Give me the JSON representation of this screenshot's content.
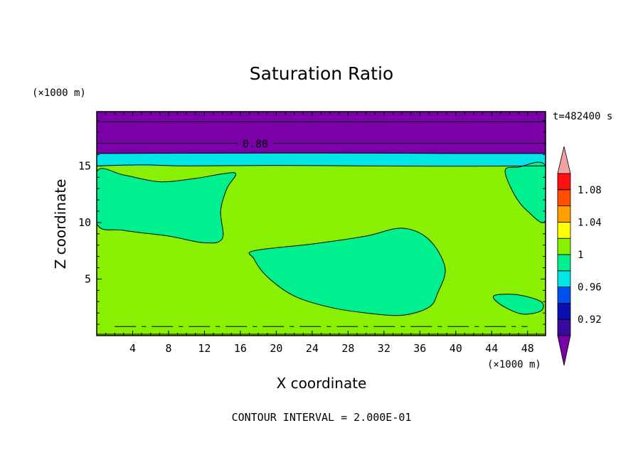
{
  "chart_data": {
    "type": "heatmap",
    "title": "Saturation Ratio",
    "xlabel": "X coordinate",
    "ylabel": "Z coordinate",
    "x_unit": "(×1000 m)",
    "y_unit": "(×1000 m)",
    "xlim": [
      0,
      50
    ],
    "ylim": [
      0,
      19.8
    ],
    "x_ticks": [
      4,
      8,
      12,
      16,
      20,
      24,
      28,
      32,
      36,
      40,
      44,
      48
    ],
    "y_ticks": [
      5,
      10,
      15
    ],
    "time_label": "t=482400 s",
    "contour_label": "0.80",
    "footer": "CONTOUR INTERVAL = 2.000E-01",
    "colorbar": {
      "labels": [
        "0.92",
        "0.96",
        "1",
        "1.04",
        "1.08"
      ],
      "label_values": [
        0.92,
        0.96,
        1.0,
        1.04,
        1.08
      ],
      "min": 0.9,
      "max": 1.1,
      "band_step": 0.02,
      "colors": [
        "#3a0aa0",
        "#0a10b0",
        "#0050f0",
        "#00e6e6",
        "#00f090",
        "#88f000",
        "#ffff00",
        "#ffa000",
        "#ff5000",
        "#ff1010"
      ],
      "under_color": "#7a00a8",
      "over_color": "#f5a0a0"
    },
    "field": {
      "background_color": "#88f000",
      "moist_color": "#00f090",
      "transition_color": "#00e6e6",
      "dry_color": "#7a00a8",
      "line_color": "#000000",
      "dry_layer_z": [
        16.1,
        19.8
      ],
      "transition_layer_z": [
        15.0,
        16.1
      ],
      "contour_lines_z": [
        17.0,
        18.9
      ],
      "regions": [
        {
          "name": "upper-left-moist",
          "points": [
            [
              0,
              14.5
            ],
            [
              3,
              14.2
            ],
            [
              7,
              13.6
            ],
            [
              11,
              13.9
            ],
            [
              14,
              14.3
            ],
            [
              15.5,
              14.3
            ],
            [
              14.5,
              13
            ],
            [
              13.8,
              11
            ],
            [
              14,
              8.6
            ],
            [
              12,
              8.2
            ],
            [
              8,
              8.8
            ],
            [
              3,
              9.3
            ],
            [
              0,
              9.9
            ]
          ]
        },
        {
          "name": "central-moist",
          "points": [
            [
              17.5,
              7.5
            ],
            [
              24,
              8.1
            ],
            [
              30,
              8.8
            ],
            [
              34,
              9.5
            ],
            [
              37,
              8.5
            ],
            [
              38.8,
              6
            ],
            [
              38,
              3.8
            ],
            [
              37,
              2.5
            ],
            [
              34,
              1.8
            ],
            [
              30,
              2
            ],
            [
              26,
              2.5
            ],
            [
              22,
              3.5
            ],
            [
              19,
              5.2
            ],
            [
              17.5,
              6.8
            ]
          ]
        },
        {
          "name": "upper-right-moist",
          "points": [
            [
              50,
              15.0
            ],
            [
              47,
              14.9
            ],
            [
              45.5,
              14.6
            ],
            [
              46.5,
              12.5
            ],
            [
              48,
              11
            ],
            [
              50,
              10.2
            ]
          ]
        },
        {
          "name": "lower-right-moist",
          "points": [
            [
              44.5,
              3.6
            ],
            [
              47,
              3.6
            ],
            [
              49.5,
              3
            ],
            [
              49.5,
              2.2
            ],
            [
              47.5,
              1.9
            ],
            [
              45.5,
              2.5
            ],
            [
              44.3,
              3.2
            ]
          ]
        }
      ],
      "boundary_lines": [
        [
          [
            0,
            15.0
          ],
          [
            5,
            15.1
          ],
          [
            10,
            15.0
          ],
          [
            20,
            15.05
          ],
          [
            30,
            15.0
          ],
          [
            40,
            14.98
          ],
          [
            50,
            15.0
          ]
        ],
        [
          [
            0,
            16.1
          ],
          [
            10,
            16.12
          ],
          [
            25,
            16.15
          ],
          [
            40,
            16.1
          ],
          [
            50,
            16.1
          ]
        ]
      ],
      "dashed_line_z": 0.8
    }
  }
}
